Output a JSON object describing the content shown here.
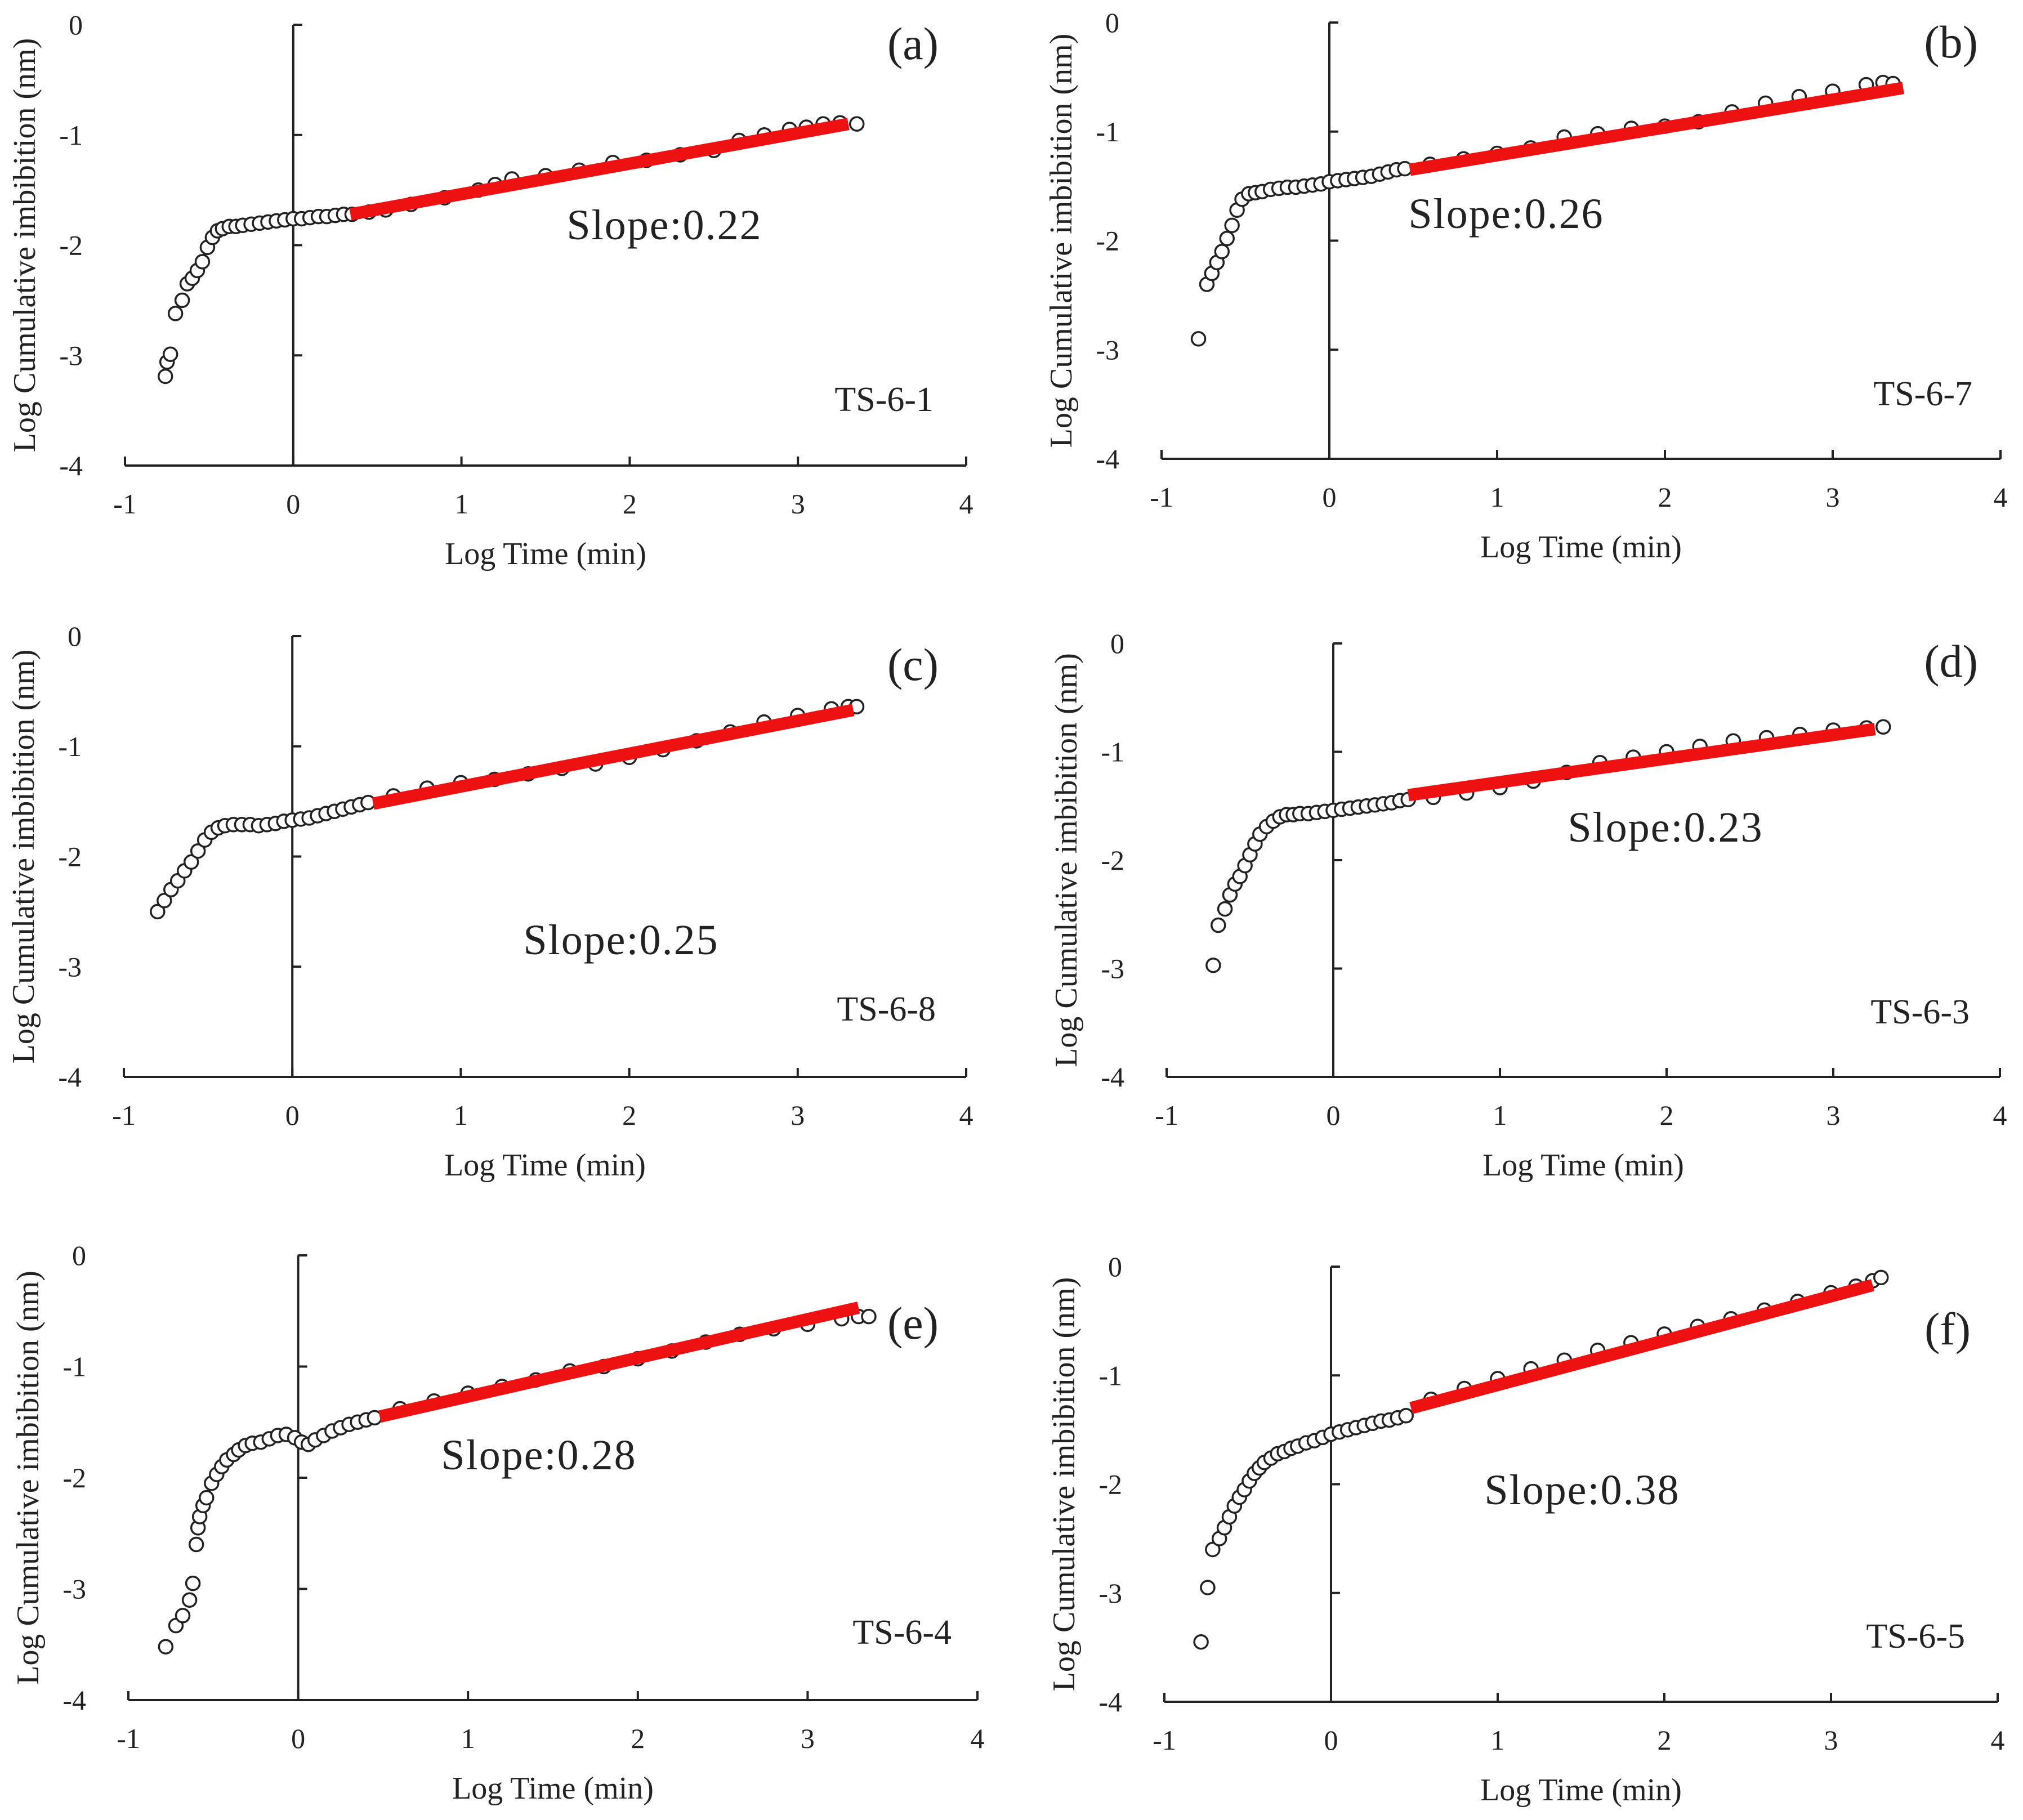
{
  "colors": {
    "fit": "#ee1111",
    "marker": "#222222",
    "text": "#222222"
  },
  "chart_data": [
    {
      "type": "scatter",
      "letter": "(a)",
      "sample": "TS-6-1",
      "slope_text": "Slope:0.22",
      "xlabel": "Log Time (min)",
      "ylabel": "Log Cumulative imbibition (nm)",
      "xlim": [
        -1,
        4
      ],
      "ylim": [
        -4,
        0
      ],
      "xticks": [
        -1,
        0,
        1,
        2,
        3,
        4
      ],
      "yticks": [
        0,
        -1,
        -2,
        -3,
        -4
      ],
      "points": [
        [
          -0.76,
          -3.19
        ],
        [
          -0.75,
          -3.06
        ],
        [
          -0.73,
          -2.99
        ],
        [
          -0.7,
          -2.62
        ],
        [
          -0.66,
          -2.5
        ],
        [
          -0.63,
          -2.35
        ],
        [
          -0.6,
          -2.3
        ],
        [
          -0.57,
          -2.23
        ],
        [
          -0.54,
          -2.15
        ],
        [
          -0.51,
          -2.02
        ],
        [
          -0.48,
          -1.93
        ],
        [
          -0.45,
          -1.87
        ],
        [
          -0.42,
          -1.85
        ],
        [
          -0.38,
          -1.83
        ],
        [
          -0.34,
          -1.83
        ],
        [
          -0.3,
          -1.82
        ],
        [
          -0.25,
          -1.81
        ],
        [
          -0.2,
          -1.8
        ],
        [
          -0.15,
          -1.79
        ],
        [
          -0.1,
          -1.78
        ],
        [
          -0.05,
          -1.77
        ],
        [
          0.0,
          -1.76
        ],
        [
          0.05,
          -1.76
        ],
        [
          0.1,
          -1.75
        ],
        [
          0.15,
          -1.74
        ],
        [
          0.2,
          -1.74
        ],
        [
          0.25,
          -1.73
        ],
        [
          0.3,
          -1.72
        ],
        [
          0.35,
          -1.72
        ],
        [
          0.45,
          -1.7
        ],
        [
          0.55,
          -1.68
        ],
        [
          0.7,
          -1.63
        ],
        [
          0.9,
          -1.57
        ],
        [
          1.1,
          -1.5
        ],
        [
          1.2,
          -1.45
        ],
        [
          1.3,
          -1.4
        ],
        [
          1.5,
          -1.37
        ],
        [
          1.7,
          -1.32
        ],
        [
          1.9,
          -1.25
        ],
        [
          2.1,
          -1.23
        ],
        [
          2.3,
          -1.18
        ],
        [
          2.5,
          -1.14
        ],
        [
          2.65,
          -1.05
        ],
        [
          2.8,
          -1.0
        ],
        [
          2.95,
          -0.95
        ],
        [
          3.05,
          -0.93
        ],
        [
          3.15,
          -0.9
        ],
        [
          3.25,
          -0.89
        ],
        [
          3.35,
          -0.9
        ]
      ],
      "fit": {
        "slope": 0.22,
        "x": [
          0.34,
          3.3
        ],
        "y": [
          -1.72,
          -0.9
        ]
      }
    },
    {
      "type": "scatter",
      "letter": "(b)",
      "sample": "TS-6-7",
      "slope_text": "Slope:0.26",
      "xlabel": "Log Time (min)",
      "ylabel": "Log Cumulative imbibition (nm)",
      "xlim": [
        -1,
        4
      ],
      "ylim": [
        -4,
        0
      ],
      "xticks": [
        -1,
        0,
        1,
        2,
        3,
        4
      ],
      "yticks": [
        0,
        -1,
        -2,
        -3,
        -4
      ],
      "points": [
        [
          -0.78,
          -2.9
        ],
        [
          -0.73,
          -2.4
        ],
        [
          -0.7,
          -2.3
        ],
        [
          -0.67,
          -2.2
        ],
        [
          -0.64,
          -2.1
        ],
        [
          -0.61,
          -1.98
        ],
        [
          -0.58,
          -1.86
        ],
        [
          -0.55,
          -1.72
        ],
        [
          -0.52,
          -1.62
        ],
        [
          -0.48,
          -1.57
        ],
        [
          -0.44,
          -1.56
        ],
        [
          -0.4,
          -1.55
        ],
        [
          -0.35,
          -1.53
        ],
        [
          -0.3,
          -1.52
        ],
        [
          -0.25,
          -1.51
        ],
        [
          -0.2,
          -1.51
        ],
        [
          -0.15,
          -1.5
        ],
        [
          -0.1,
          -1.49
        ],
        [
          -0.05,
          -1.48
        ],
        [
          0.0,
          -1.46
        ],
        [
          0.05,
          -1.45
        ],
        [
          0.1,
          -1.44
        ],
        [
          0.15,
          -1.43
        ],
        [
          0.2,
          -1.42
        ],
        [
          0.25,
          -1.41
        ],
        [
          0.3,
          -1.39
        ],
        [
          0.35,
          -1.37
        ],
        [
          0.4,
          -1.35
        ],
        [
          0.45,
          -1.34
        ],
        [
          0.6,
          -1.3
        ],
        [
          0.8,
          -1.25
        ],
        [
          1.0,
          -1.2
        ],
        [
          1.2,
          -1.15
        ],
        [
          1.4,
          -1.05
        ],
        [
          1.6,
          -1.02
        ],
        [
          1.8,
          -0.97
        ],
        [
          2.0,
          -0.95
        ],
        [
          2.2,
          -0.91
        ],
        [
          2.4,
          -0.82
        ],
        [
          2.6,
          -0.74
        ],
        [
          2.8,
          -0.68
        ],
        [
          3.0,
          -0.63
        ],
        [
          3.2,
          -0.57
        ],
        [
          3.3,
          -0.55
        ],
        [
          3.36,
          -0.56
        ]
      ],
      "fit": {
        "slope": 0.26,
        "x": [
          0.48,
          3.42
        ],
        "y": [
          -1.35,
          -0.6
        ]
      }
    },
    {
      "type": "scatter",
      "letter": "(c)",
      "sample": "TS-6-8",
      "slope_text": "Slope:0.25",
      "xlabel": "Log Time (min)",
      "ylabel": "Log Cumulative imbibition (nm)",
      "xlim": [
        -1,
        4
      ],
      "ylim": [
        -4,
        0
      ],
      "xticks": [
        -1,
        0,
        1,
        2,
        3,
        4
      ],
      "yticks": [
        0,
        -1,
        -2,
        -3,
        -4
      ],
      "points": [
        [
          -0.8,
          -2.5
        ],
        [
          -0.76,
          -2.4
        ],
        [
          -0.72,
          -2.3
        ],
        [
          -0.68,
          -2.22
        ],
        [
          -0.64,
          -2.13
        ],
        [
          -0.6,
          -2.05
        ],
        [
          -0.56,
          -1.95
        ],
        [
          -0.52,
          -1.85
        ],
        [
          -0.48,
          -1.78
        ],
        [
          -0.44,
          -1.74
        ],
        [
          -0.4,
          -1.72
        ],
        [
          -0.35,
          -1.71
        ],
        [
          -0.3,
          -1.71
        ],
        [
          -0.25,
          -1.71
        ],
        [
          -0.2,
          -1.72
        ],
        [
          -0.15,
          -1.71
        ],
        [
          -0.1,
          -1.7
        ],
        [
          -0.05,
          -1.68
        ],
        [
          0.0,
          -1.67
        ],
        [
          0.05,
          -1.66
        ],
        [
          0.1,
          -1.65
        ],
        [
          0.15,
          -1.63
        ],
        [
          0.2,
          -1.61
        ],
        [
          0.25,
          -1.59
        ],
        [
          0.3,
          -1.57
        ],
        [
          0.35,
          -1.55
        ],
        [
          0.4,
          -1.53
        ],
        [
          0.45,
          -1.51
        ],
        [
          0.6,
          -1.45
        ],
        [
          0.8,
          -1.38
        ],
        [
          1.0,
          -1.33
        ],
        [
          1.2,
          -1.3
        ],
        [
          1.4,
          -1.25
        ],
        [
          1.6,
          -1.2
        ],
        [
          1.8,
          -1.16
        ],
        [
          2.0,
          -1.1
        ],
        [
          2.2,
          -1.03
        ],
        [
          2.4,
          -0.95
        ],
        [
          2.6,
          -0.87
        ],
        [
          2.8,
          -0.78
        ],
        [
          3.0,
          -0.72
        ],
        [
          3.2,
          -0.66
        ],
        [
          3.3,
          -0.64
        ],
        [
          3.35,
          -0.64
        ]
      ],
      "fit": {
        "slope": 0.25,
        "x": [
          0.48,
          3.33
        ],
        "y": [
          -1.52,
          -0.67
        ]
      }
    },
    {
      "type": "scatter",
      "letter": "(d)",
      "sample": "TS-6-3",
      "slope_text": "Slope:0.23",
      "xlabel": "Log Time (min)",
      "ylabel": "Log Cumulative imbibition (nm)",
      "xlim": [
        -1,
        4
      ],
      "ylim": [
        -4,
        0
      ],
      "xticks": [
        -1,
        0,
        1,
        2,
        3,
        4
      ],
      "yticks": [
        0,
        -1,
        -2,
        -3,
        -4
      ],
      "points": [
        [
          -0.72,
          -2.97
        ],
        [
          -0.69,
          -2.6
        ],
        [
          -0.65,
          -2.45
        ],
        [
          -0.62,
          -2.32
        ],
        [
          -0.59,
          -2.22
        ],
        [
          -0.56,
          -2.15
        ],
        [
          -0.53,
          -2.05
        ],
        [
          -0.5,
          -1.95
        ],
        [
          -0.47,
          -1.85
        ],
        [
          -0.44,
          -1.76
        ],
        [
          -0.4,
          -1.69
        ],
        [
          -0.36,
          -1.64
        ],
        [
          -0.32,
          -1.6
        ],
        [
          -0.28,
          -1.58
        ],
        [
          -0.24,
          -1.58
        ],
        [
          -0.2,
          -1.57
        ],
        [
          -0.15,
          -1.57
        ],
        [
          -0.1,
          -1.56
        ],
        [
          -0.05,
          -1.55
        ],
        [
          0.0,
          -1.54
        ],
        [
          0.05,
          -1.53
        ],
        [
          0.1,
          -1.52
        ],
        [
          0.15,
          -1.51
        ],
        [
          0.2,
          -1.5
        ],
        [
          0.25,
          -1.49
        ],
        [
          0.3,
          -1.48
        ],
        [
          0.35,
          -1.47
        ],
        [
          0.4,
          -1.45
        ],
        [
          0.45,
          -1.44
        ],
        [
          0.6,
          -1.42
        ],
        [
          0.8,
          -1.38
        ],
        [
          1.0,
          -1.33
        ],
        [
          1.2,
          -1.27
        ],
        [
          1.4,
          -1.19
        ],
        [
          1.6,
          -1.1
        ],
        [
          1.8,
          -1.05
        ],
        [
          2.0,
          -1.0
        ],
        [
          2.2,
          -0.95
        ],
        [
          2.4,
          -0.9
        ],
        [
          2.6,
          -0.87
        ],
        [
          2.8,
          -0.84
        ],
        [
          3.0,
          -0.8
        ],
        [
          3.2,
          -0.78
        ],
        [
          3.3,
          -0.77
        ]
      ],
      "fit": {
        "slope": 0.23,
        "x": [
          0.45,
          3.25
        ],
        "y": [
          -1.4,
          -0.79
        ]
      }
    },
    {
      "type": "scatter",
      "letter": "(e)",
      "sample": "TS-6-4",
      "slope_text": "Slope:0.28",
      "xlabel": "Log Time (min)",
      "ylabel": "Log Cumulative imbibition (nm)",
      "xlim": [
        -1,
        4
      ],
      "ylim": [
        -4,
        0
      ],
      "xticks": [
        -1,
        0,
        1,
        2,
        3,
        4
      ],
      "yticks": [
        0,
        -1,
        -2,
        -3,
        -4
      ],
      "points": [
        [
          -0.78,
          -3.52
        ],
        [
          -0.72,
          -3.33
        ],
        [
          -0.68,
          -3.24
        ],
        [
          -0.64,
          -3.1
        ],
        [
          -0.62,
          -2.95
        ],
        [
          -0.6,
          -2.6
        ],
        [
          -0.59,
          -2.45
        ],
        [
          -0.58,
          -2.35
        ],
        [
          -0.56,
          -2.25
        ],
        [
          -0.54,
          -2.18
        ],
        [
          -0.51,
          -2.05
        ],
        [
          -0.48,
          -1.97
        ],
        [
          -0.45,
          -1.9
        ],
        [
          -0.42,
          -1.84
        ],
        [
          -0.38,
          -1.79
        ],
        [
          -0.35,
          -1.75
        ],
        [
          -0.31,
          -1.71
        ],
        [
          -0.27,
          -1.69
        ],
        [
          -0.22,
          -1.68
        ],
        [
          -0.17,
          -1.65
        ],
        [
          -0.12,
          -1.62
        ],
        [
          -0.07,
          -1.61
        ],
        [
          -0.02,
          -1.64
        ],
        [
          0.02,
          -1.68
        ],
        [
          0.06,
          -1.7
        ],
        [
          0.1,
          -1.66
        ],
        [
          0.15,
          -1.62
        ],
        [
          0.2,
          -1.58
        ],
        [
          0.25,
          -1.55
        ],
        [
          0.3,
          -1.52
        ],
        [
          0.35,
          -1.5
        ],
        [
          0.4,
          -1.48
        ],
        [
          0.45,
          -1.46
        ],
        [
          0.6,
          -1.38
        ],
        [
          0.8,
          -1.31
        ],
        [
          1.0,
          -1.24
        ],
        [
          1.2,
          -1.18
        ],
        [
          1.4,
          -1.12
        ],
        [
          1.6,
          -1.04
        ],
        [
          1.8,
          -1.0
        ],
        [
          2.0,
          -0.93
        ],
        [
          2.2,
          -0.86
        ],
        [
          2.4,
          -0.78
        ],
        [
          2.6,
          -0.71
        ],
        [
          2.8,
          -0.66
        ],
        [
          3.0,
          -0.62
        ],
        [
          3.2,
          -0.57
        ],
        [
          3.3,
          -0.55
        ],
        [
          3.36,
          -0.55
        ]
      ],
      "fit": {
        "slope": 0.28,
        "x": [
          0.48,
          3.3
        ],
        "y": [
          -1.45,
          -0.47
        ]
      }
    },
    {
      "type": "scatter",
      "letter": "(f)",
      "sample": "TS-6-5",
      "slope_text": "Slope:0.38",
      "xlabel": "Log Time (min)",
      "ylabel": "Log Cumulative imbibition (nm)",
      "xlim": [
        -1,
        4
      ],
      "ylim": [
        -4,
        0
      ],
      "xticks": [
        -1,
        0,
        1,
        2,
        3,
        4
      ],
      "yticks": [
        0,
        -1,
        -2,
        -3,
        -4
      ],
      "points": [
        [
          -0.78,
          -3.45
        ],
        [
          -0.74,
          -2.95
        ],
        [
          -0.71,
          -2.6
        ],
        [
          -0.67,
          -2.5
        ],
        [
          -0.64,
          -2.4
        ],
        [
          -0.61,
          -2.3
        ],
        [
          -0.58,
          -2.2
        ],
        [
          -0.55,
          -2.12
        ],
        [
          -0.52,
          -2.05
        ],
        [
          -0.49,
          -1.97
        ],
        [
          -0.46,
          -1.9
        ],
        [
          -0.43,
          -1.85
        ],
        [
          -0.4,
          -1.8
        ],
        [
          -0.36,
          -1.76
        ],
        [
          -0.32,
          -1.72
        ],
        [
          -0.28,
          -1.7
        ],
        [
          -0.24,
          -1.67
        ],
        [
          -0.2,
          -1.65
        ],
        [
          -0.15,
          -1.62
        ],
        [
          -0.1,
          -1.6
        ],
        [
          -0.05,
          -1.57
        ],
        [
          0.0,
          -1.54
        ],
        [
          0.05,
          -1.52
        ],
        [
          0.1,
          -1.5
        ],
        [
          0.15,
          -1.48
        ],
        [
          0.2,
          -1.46
        ],
        [
          0.25,
          -1.44
        ],
        [
          0.3,
          -1.42
        ],
        [
          0.35,
          -1.41
        ],
        [
          0.4,
          -1.39
        ],
        [
          0.45,
          -1.37
        ],
        [
          0.6,
          -1.22
        ],
        [
          0.8,
          -1.12
        ],
        [
          1.0,
          -1.03
        ],
        [
          1.2,
          -0.94
        ],
        [
          1.4,
          -0.86
        ],
        [
          1.6,
          -0.77
        ],
        [
          1.8,
          -0.7
        ],
        [
          2.0,
          -0.62
        ],
        [
          2.2,
          -0.55
        ],
        [
          2.4,
          -0.48
        ],
        [
          2.6,
          -0.4
        ],
        [
          2.8,
          -0.32
        ],
        [
          3.0,
          -0.24
        ],
        [
          3.15,
          -0.18
        ],
        [
          3.25,
          -0.13
        ],
        [
          3.3,
          -0.1
        ]
      ],
      "fit": {
        "slope": 0.38,
        "x": [
          0.48,
          3.25
        ],
        "y": [
          -1.3,
          -0.17
        ]
      }
    }
  ]
}
